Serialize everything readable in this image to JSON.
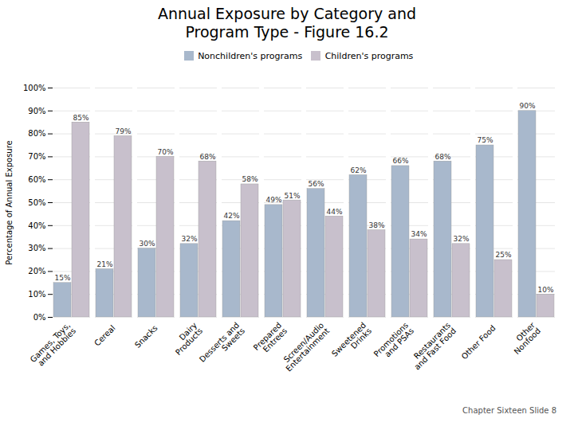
{
  "chart_data": {
    "type": "bar",
    "title": "Annual Exposure by Category and\nProgram Type - Figure 16.2",
    "categories": [
      "Games, Toys,\nand Hobbies",
      "Cereal",
      "Snacks",
      "Dairy\nProducts",
      "Desserts and\nSweets",
      "Prepared\nEntrees",
      "Screen/Audio\nEntertainment",
      "Sweetened\nDrinks",
      "Promotions\nand PSAs",
      "Restaurants\nand Fast Food",
      "Other Food",
      "Other\nNonfood"
    ],
    "series": [
      {
        "name": "Nonchildren's programs",
        "color": "#a8b8cc",
        "values": [
          15,
          21,
          30,
          32,
          42,
          49,
          56,
          62,
          66,
          68,
          75,
          90
        ],
        "value_labels": [
          "15%",
          "21%",
          "30%",
          "32%",
          "42%",
          "49%",
          "56%",
          "62%",
          "66%",
          "68%",
          "75%",
          "90%"
        ]
      },
      {
        "name": "Children's programs",
        "color": "#c8c0cc",
        "values": [
          85,
          79,
          70,
          68,
          58,
          51,
          44,
          38,
          34,
          32,
          25,
          10
        ],
        "value_labels": [
          "85%",
          "79%",
          "70%",
          "68%",
          "58%",
          "51%",
          "44%",
          "38%",
          "34%",
          "32%",
          "25%",
          "10%"
        ]
      }
    ],
    "ylabel": "Percentage of Annual Exposure",
    "ylim": [
      0,
      100
    ],
    "yticks": [
      {
        "value": 0,
        "label": "0%"
      },
      {
        "value": 10,
        "label": "10%"
      },
      {
        "value": 20,
        "label": "20%"
      },
      {
        "value": 30,
        "label": "30%"
      },
      {
        "value": 40,
        "label": "40%"
      },
      {
        "value": 50,
        "label": "50%"
      },
      {
        "value": 60,
        "label": "60%"
      },
      {
        "value": 70,
        "label": "70%"
      },
      {
        "value": 80,
        "label": "80%"
      },
      {
        "value": 90,
        "label": "90%"
      },
      {
        "value": 100,
        "label": "100%"
      }
    ],
    "grid": true,
    "legend": "upper center",
    "data_labels": true,
    "footnote": "Chapter Sixteen Slide  8"
  }
}
